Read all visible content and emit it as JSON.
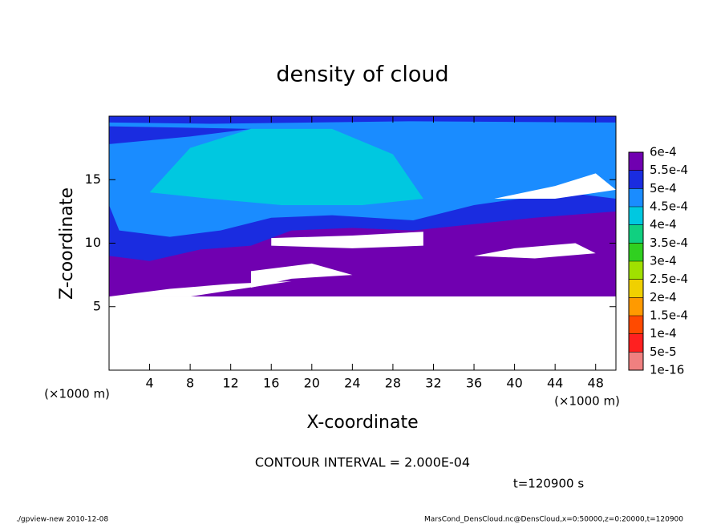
{
  "chart_data": {
    "type": "contour",
    "title": "density of cloud",
    "x_label": "X-coordinate",
    "y_label": "Z-coordinate",
    "x_unit": "(×1000 m)",
    "y_unit": "(×1000 m)",
    "xlim": [
      0,
      50
    ],
    "xticks": [
      4,
      8,
      12,
      16,
      20,
      24,
      28,
      32,
      36,
      40,
      44,
      48
    ],
    "ylim": [
      0,
      20
    ],
    "yticks": [
      5,
      10,
      15
    ],
    "colorbar": {
      "lim": [
        0,
        0.0006
      ],
      "ticks": [
        {
          "value": 0.0006,
          "label": "6e-4"
        },
        {
          "value": 0.00055,
          "label": "5.5e-4"
        },
        {
          "value": 0.0005,
          "label": "5e-4"
        },
        {
          "value": 0.00045,
          "label": "4.5e-4"
        },
        {
          "value": 0.0004,
          "label": "4e-4"
        },
        {
          "value": 0.00035,
          "label": "3.5e-4"
        },
        {
          "value": 0.0003,
          "label": "3e-4"
        },
        {
          "value": 0.00025,
          "label": "2.5e-4"
        },
        {
          "value": 0.0002,
          "label": "2e-4"
        },
        {
          "value": 0.00015,
          "label": "1.5e-4"
        },
        {
          "value": 0.0001,
          "label": "1e-4"
        },
        {
          "value": 5e-05,
          "label": "5e-5"
        },
        {
          "value": 1e-16,
          "label": "1e-16"
        }
      ],
      "colors": [
        "#f08080",
        "#ff2020",
        "#ff4a00",
        "#ff9a00",
        "#f0d000",
        "#a0e000",
        "#30d020",
        "#10d080",
        "#00c8e0",
        "#1a8cff",
        "#1a2ce0",
        "#7000b0"
      ]
    },
    "contour_interval": "CONTOUR INTERVAL = 2.000E-04",
    "time_label": "t=120900 s",
    "footer_left": "./gpview-new  2010-12-08",
    "footer_right": "MarsCond_DensCloud.nc@DensCloud,x=0:50000,z=0:20000,t=120900"
  }
}
